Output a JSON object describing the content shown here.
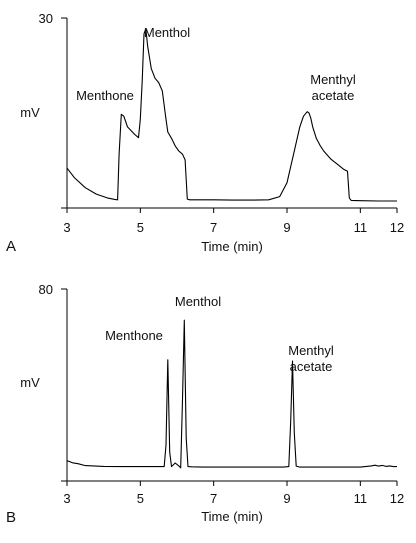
{
  "chart_data": [
    {
      "type": "line",
      "panel_letter": "A",
      "xlabel": "Time (min)",
      "ylabel": "mV",
      "xlim": [
        3,
        12
      ],
      "ylim": [
        0,
        30
      ],
      "x_ticks": [
        3,
        5,
        7,
        9,
        11,
        12
      ],
      "y_tick_labels": [
        "30"
      ],
      "grid": false,
      "peak_labels": [
        {
          "lines": [
            "Menthone"
          ],
          "x": 4.4
        },
        {
          "lines": [
            "Menthol"
          ],
          "x": 5.15
        },
        {
          "lines": [
            "Menthyl",
            "acetate"
          ],
          "x": 9.6
        }
      ],
      "series": [
        {
          "x": [
            3.0,
            3.2,
            3.5,
            3.8,
            4.1,
            4.3,
            4.38,
            4.42,
            4.48,
            4.55,
            4.65,
            4.75,
            4.85,
            4.95,
            5.0,
            5.05,
            5.1,
            5.15,
            5.2,
            5.3,
            5.4,
            5.5,
            5.6,
            5.7,
            5.75,
            5.85,
            5.95,
            6.05,
            6.15,
            6.22,
            6.28,
            6.35,
            6.6,
            7.0,
            7.5,
            8.0,
            8.5,
            8.8,
            9.0,
            9.2,
            9.35,
            9.45,
            9.55,
            9.6,
            9.65,
            9.7,
            9.8,
            9.9,
            10.0,
            10.2,
            10.4,
            10.55,
            10.65,
            10.7,
            10.75,
            11.0,
            11.5,
            12.0
          ],
          "y": [
            6.3,
            4.8,
            3.2,
            2.2,
            1.6,
            1.35,
            1.3,
            8.5,
            14.8,
            14.5,
            12.8,
            12.2,
            11.6,
            11.1,
            14.0,
            20.0,
            27.5,
            28.3,
            25.5,
            22.0,
            20.5,
            19.8,
            18.5,
            14.0,
            12.0,
            11.0,
            9.8,
            9.0,
            8.5,
            7.6,
            1.4,
            1.3,
            1.3,
            1.3,
            1.25,
            1.25,
            1.3,
            1.8,
            4.0,
            9.0,
            12.8,
            14.5,
            15.2,
            15.0,
            14.2,
            12.8,
            11.0,
            9.9,
            9.0,
            7.7,
            6.8,
            6.1,
            5.8,
            1.6,
            1.2,
            1.15,
            1.1,
            1.1
          ]
        }
      ]
    },
    {
      "type": "line",
      "panel_letter": "B",
      "xlabel": "Time (min)",
      "ylabel": "mV",
      "xlim": [
        3,
        12
      ],
      "ylim": [
        0,
        80
      ],
      "x_ticks": [
        3,
        5,
        7,
        9,
        11,
        12
      ],
      "y_tick_labels": [
        "80"
      ],
      "grid": false,
      "peak_labels": [
        {
          "lines": [
            "Menthone"
          ],
          "x": 5.75
        },
        {
          "lines": [
            "Menthol"
          ],
          "x": 6.2
        },
        {
          "lines": [
            "Menthyl",
            "acetate"
          ],
          "x": 9.15
        }
      ],
      "series": [
        {
          "x": [
            3.0,
            3.15,
            3.3,
            3.5,
            4.0,
            4.5,
            5.0,
            5.5,
            5.65,
            5.7,
            5.75,
            5.8,
            5.85,
            5.95,
            6.05,
            6.1,
            6.15,
            6.2,
            6.25,
            6.3,
            6.4,
            6.7,
            7.0,
            7.5,
            8.0,
            8.5,
            8.9,
            9.05,
            9.1,
            9.15,
            9.2,
            9.25,
            9.35,
            9.6,
            10.0,
            10.5,
            11.0,
            11.3,
            11.4,
            11.5,
            11.6,
            11.7,
            11.8,
            11.9,
            12.0
          ],
          "y": [
            8.5,
            7.6,
            7.2,
            6.4,
            6.1,
            6.0,
            6.0,
            6.0,
            6.0,
            15.0,
            50.5,
            12.0,
            6.0,
            7.5,
            6.3,
            5.5,
            34.0,
            67.0,
            18.0,
            6.0,
            5.9,
            5.8,
            5.8,
            5.8,
            5.8,
            5.8,
            5.8,
            6.0,
            25.0,
            50.0,
            20.0,
            6.2,
            5.8,
            5.8,
            5.8,
            5.8,
            5.8,
            6.3,
            6.6,
            6.2,
            6.5,
            6.1,
            6.3,
            6.0,
            6.0
          ]
        }
      ]
    }
  ]
}
